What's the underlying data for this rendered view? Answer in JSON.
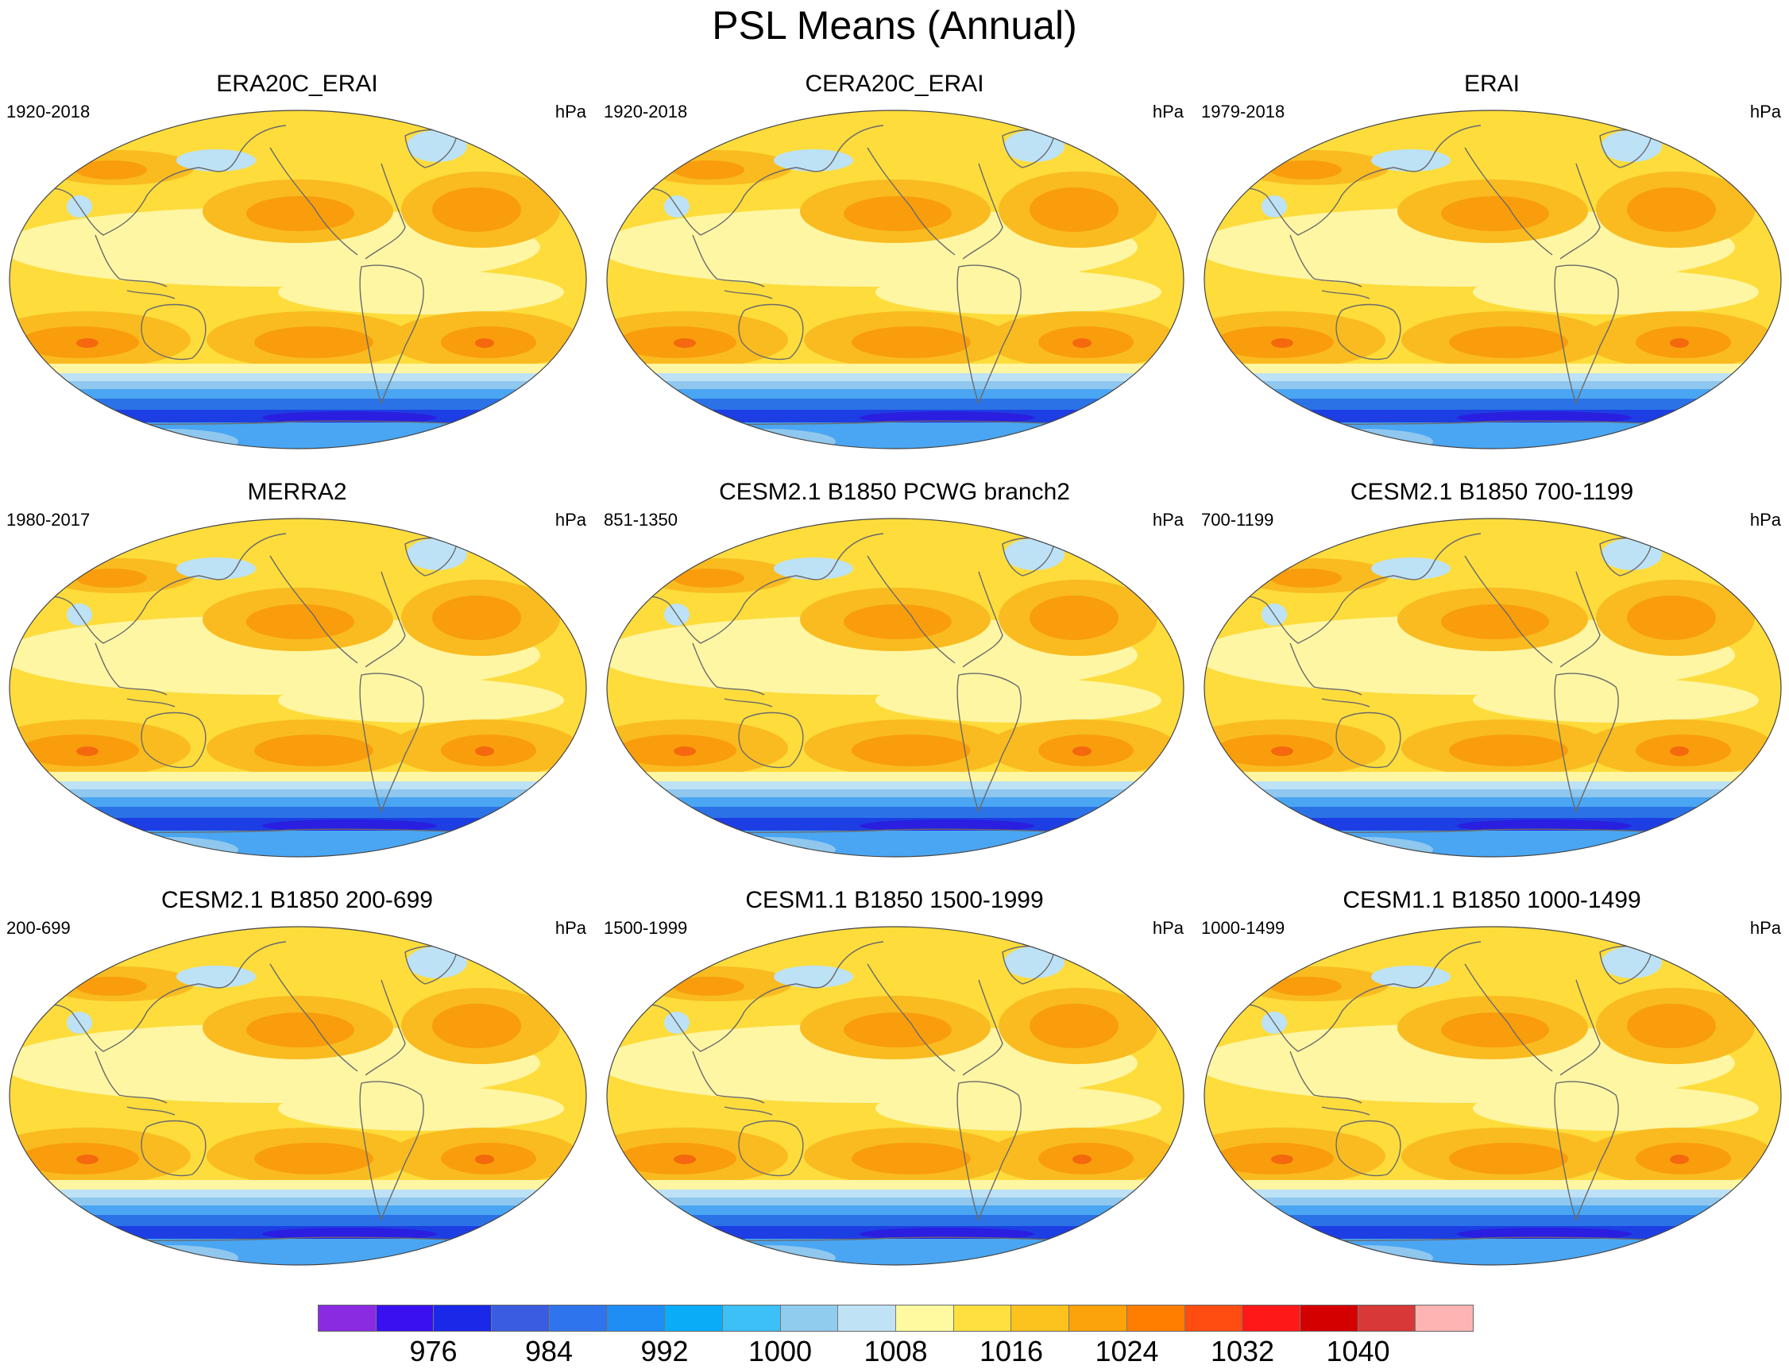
{
  "title": "PSL Means (Annual)",
  "panels": [
    {
      "title": "ERA20C_ERAI",
      "years": "1920-2018",
      "units": "hPa"
    },
    {
      "title": "CERA20C_ERAI",
      "years": "1920-2018",
      "units": "hPa"
    },
    {
      "title": "ERAI",
      "years": "1979-2018",
      "units": "hPa"
    },
    {
      "title": "MERRA2",
      "years": "1980-2017",
      "units": "hPa"
    },
    {
      "title": "CESM2.1 B1850 PCWG branch2",
      "years": "851-1350",
      "units": "hPa"
    },
    {
      "title": "CESM2.1 B1850 700-1199",
      "years": "700-1199",
      "units": "hPa"
    },
    {
      "title": "CESM2.1 B1850 200-699",
      "years": "200-699",
      "units": "hPa"
    },
    {
      "title": "CESM1.1 B1850 1500-1999",
      "years": "1500-1999",
      "units": "hPa"
    },
    {
      "title": "CESM1.1 B1850 1000-1499",
      "years": "1000-1499",
      "units": "hPa"
    }
  ],
  "colorbar": {
    "labels": [
      "976",
      "984",
      "992",
      "1000",
      "1008",
      "1016",
      "1024",
      "1032",
      "1040"
    ],
    "colors": [
      "#8a2be2",
      "#3a10f0",
      "#1a28e8",
      "#3a5ce0",
      "#2e74ec",
      "#1e8ef5",
      "#0aacf8",
      "#3cc0f5",
      "#90ccee",
      "#bfe3f5",
      "#fffaa0",
      "#ffe040",
      "#fcc21e",
      "#fca20a",
      "#ff7e00",
      "#ff4c10",
      "#ff1818",
      "#d40000",
      "#d83838",
      "#ffb4b4"
    ]
  },
  "map_colors": {
    "sea": "#fddc3c",
    "ridge": "#f9bb20",
    "high": "#f99d0c",
    "core": "#f4680e",
    "calm": "#fff6a3",
    "trough": "#bde2f6",
    "ring1": "#8fc7ee",
    "ring2": "#4aa6f2",
    "ring3": "#2b72e6",
    "ring4": "#1c3ee3",
    "ring5": "#2a1ee0",
    "coast": "#6a6a6a"
  }
}
